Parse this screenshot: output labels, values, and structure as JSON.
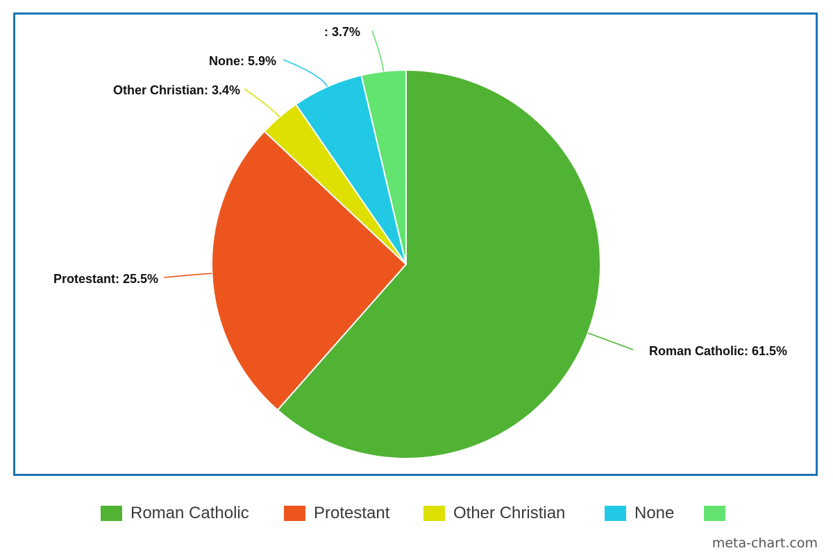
{
  "chart_data": {
    "type": "pie",
    "title": "",
    "slices": [
      {
        "label": "Roman Catholic",
        "value": 61.5,
        "display": "Roman Catholic: 61.5%",
        "color": "#51b334"
      },
      {
        "label": "Protestant",
        "value": 25.5,
        "display": "Protestant: 25.5%",
        "color": "#ec561e"
      },
      {
        "label": "Other Christian",
        "value": 3.4,
        "display": "Other Christian: 3.4%",
        "color": "#dde000"
      },
      {
        "label": "None",
        "value": 5.9,
        "display": "None: 5.9%",
        "color": "#22c9e4"
      },
      {
        "label": "",
        "value": 3.7,
        "display": ": 3.7%",
        "color": "#63e36f"
      }
    ],
    "legend": {
      "placement": "bottom",
      "entries": [
        "Roman Catholic",
        "Protestant",
        "Other Christian",
        "None",
        ""
      ]
    }
  },
  "watermark": "meta-chart.com",
  "colors": {
    "frame_border": "#1a73b8"
  }
}
